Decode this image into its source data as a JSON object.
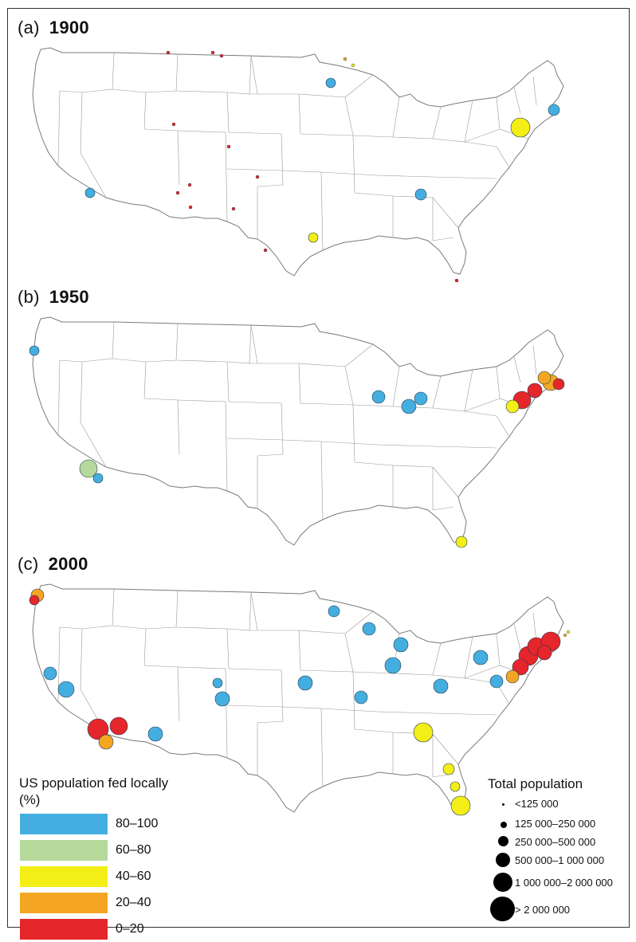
{
  "panels": [
    {
      "letter": "(a)",
      "year": "1900"
    },
    {
      "letter": "(b)",
      "year": "1950"
    },
    {
      "letter": "(c)",
      "year": "2000"
    }
  ],
  "legend_color": {
    "title": "US population fed locally",
    "unit": "(%)",
    "classes": [
      {
        "label": "80–100",
        "color": "#45aee0"
      },
      {
        "label": "60–80",
        "color": "#b5d99b"
      },
      {
        "label": "40–60",
        "color": "#f3ee16"
      },
      {
        "label": "20–40",
        "color": "#f4a623"
      },
      {
        "label": "0–20",
        "color": "#e5262b"
      }
    ]
  },
  "legend_size": {
    "title": "Total population",
    "classes": [
      {
        "label": "<125 000"
      },
      {
        "label": "125 000–250 000"
      },
      {
        "label": "250 000–500 000"
      },
      {
        "label": "500 000–1 000 000"
      },
      {
        "label": "1 000 000–2 000 000"
      },
      {
        "label": "> 2 000 000"
      }
    ]
  },
  "colors": {
    "dot_fill": "#45aee0",
    "dot_stroke": "#1f3a4d",
    "state_line": "#9a9a9a",
    "outline": "#7a7a7a",
    "land": "#ffffff"
  }
}
